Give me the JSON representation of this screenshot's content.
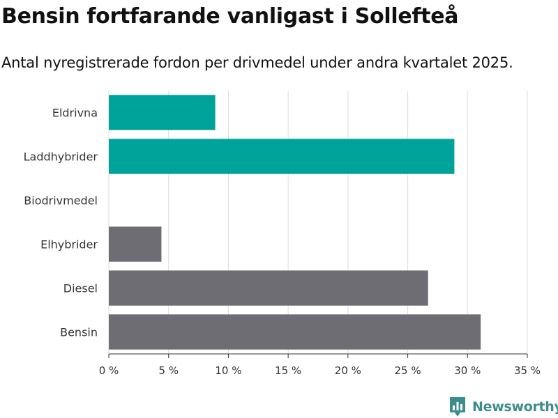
{
  "title": "Bensin fortfarande vanligast i Sollefteå",
  "subtitle": "Antal nyregistrerade fordon per drivmedel under andra kvartalet 2025.",
  "brand": {
    "name": "Newsworthy",
    "icon": "newsworthy-logo-icon",
    "color": "#3d8d8d"
  },
  "colors": {
    "electric": "#00a39a",
    "fossil": "#6e6d73",
    "grid": "#dcdcdc",
    "text": "#333333"
  },
  "chart_data": {
    "type": "bar",
    "orientation": "horizontal",
    "title": "Bensin fortfarande vanligast i Sollefteå",
    "subtitle": "Antal nyregistrerade fordon per drivmedel under andra kvartalet 2025.",
    "xlabel": "",
    "ylabel": "",
    "xlim": [
      0,
      35
    ],
    "ticks": [
      0,
      5,
      10,
      15,
      20,
      25,
      30,
      35
    ],
    "tick_labels": [
      "0 %",
      "5 %",
      "10 %",
      "15 %",
      "20 %",
      "25 %",
      "30 %",
      "35 %"
    ],
    "grid": true,
    "legend": "none",
    "categories": [
      "Eldrivna",
      "Laddhybrider",
      "Biodrivmedel",
      "Elhybrider",
      "Diesel",
      "Bensin"
    ],
    "values": [
      8.9,
      28.9,
      0,
      4.4,
      26.7,
      31.1
    ],
    "bar_colors": [
      "#00a39a",
      "#00a39a",
      "#6e6d73",
      "#6e6d73",
      "#6e6d73",
      "#6e6d73"
    ]
  }
}
